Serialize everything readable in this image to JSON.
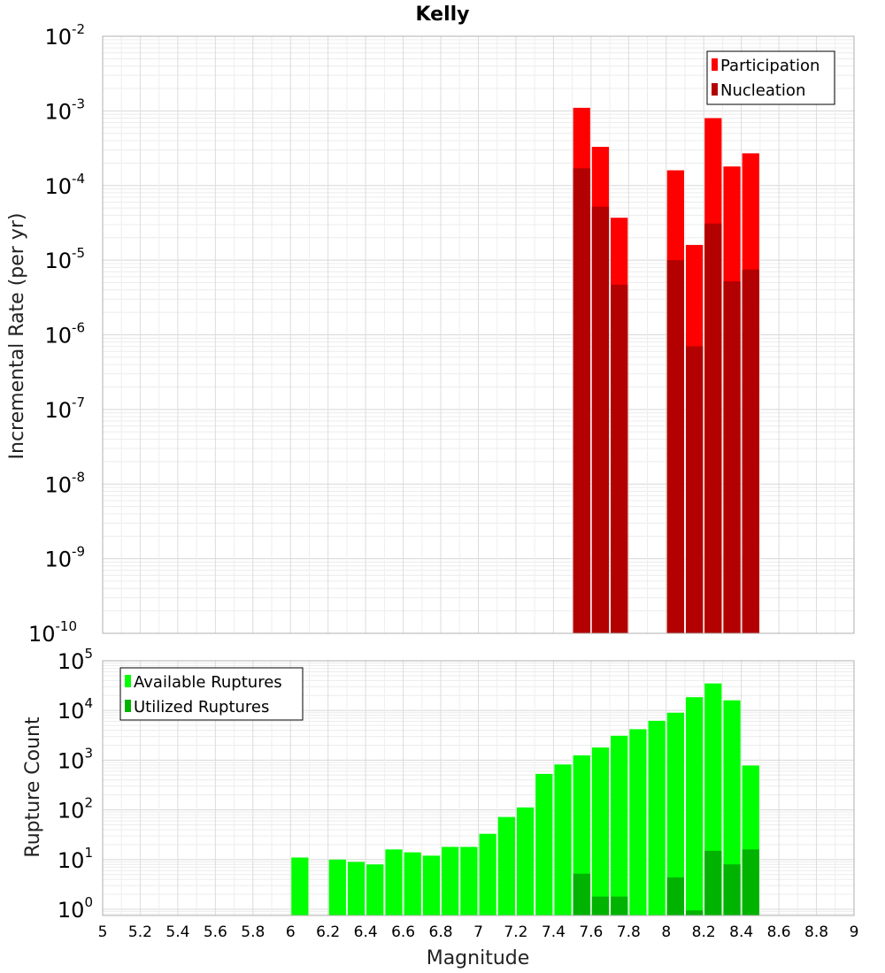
{
  "chart_data": [
    {
      "type": "bar",
      "scale": "log",
      "title": "Kelly",
      "xlabel": "",
      "ylabel": "Incremental Rate (per yr)",
      "xlim": [
        5,
        9
      ],
      "ylim": [
        1e-10,
        0.01
      ],
      "grid": true,
      "legend_position": "top-right",
      "bar_width": 0.1,
      "colors": {
        "Participation": "#ff0000",
        "Nucleation": "#b30000"
      },
      "series": [
        {
          "name": "Participation",
          "x": [
            7.55,
            7.65,
            7.75,
            8.05,
            8.15,
            8.25,
            8.35,
            8.45
          ],
          "values": [
            0.0011,
            0.00033,
            3.7e-05,
            0.00016,
            1.6e-05,
            0.0008,
            0.00018,
            0.00027
          ]
        },
        {
          "name": "Nucleation",
          "x": [
            7.55,
            7.65,
            7.75,
            8.05,
            8.15,
            8.25,
            8.35,
            8.45
          ],
          "values": [
            0.00017,
            5.2e-05,
            4.7e-06,
            1e-05,
            7e-07,
            3.1e-05,
            5.2e-06,
            7.5e-06
          ]
        }
      ]
    },
    {
      "type": "bar",
      "scale": "log",
      "title": "",
      "xlabel": "Magnitude",
      "ylabel": "Rupture Count",
      "xlim": [
        5,
        9
      ],
      "ylim": [
        0.75,
        100000.0
      ],
      "grid": true,
      "legend_position": "top-left",
      "bar_width": 0.1,
      "x_ticks": [
        "5",
        "5.2",
        "5.4",
        "5.6",
        "5.8",
        "6",
        "6.2",
        "6.4",
        "6.6",
        "6.8",
        "7",
        "7.2",
        "7.4",
        "7.6",
        "7.8",
        "8",
        "8.2",
        "8.4",
        "8.6",
        "8.8",
        "9"
      ],
      "colors": {
        "Available Ruptures": "#00ff00",
        "Utilized Ruptures": "#00b300"
      },
      "series": [
        {
          "name": "Available Ruptures",
          "x": [
            6.05,
            6.25,
            6.35,
            6.45,
            6.55,
            6.65,
            6.75,
            6.85,
            6.95,
            7.05,
            7.15,
            7.25,
            7.35,
            7.45,
            7.55,
            7.65,
            7.75,
            7.85,
            7.95,
            8.05,
            8.15,
            8.25,
            8.35,
            8.45
          ],
          "values": [
            11,
            10,
            9,
            8,
            16,
            14,
            12,
            18,
            18,
            33,
            72,
            112,
            530,
            820,
            1250,
            1800,
            3100,
            4200,
            6200,
            9000,
            18500,
            35000,
            16000,
            780
          ]
        },
        {
          "name": "Utilized Ruptures",
          "x": [
            7.55,
            7.65,
            7.75,
            8.05,
            8.15,
            8.25,
            8.35,
            8.45
          ],
          "values": [
            5.2,
            1.8,
            1.8,
            4.4,
            0.95,
            15,
            8,
            16
          ]
        }
      ]
    }
  ]
}
